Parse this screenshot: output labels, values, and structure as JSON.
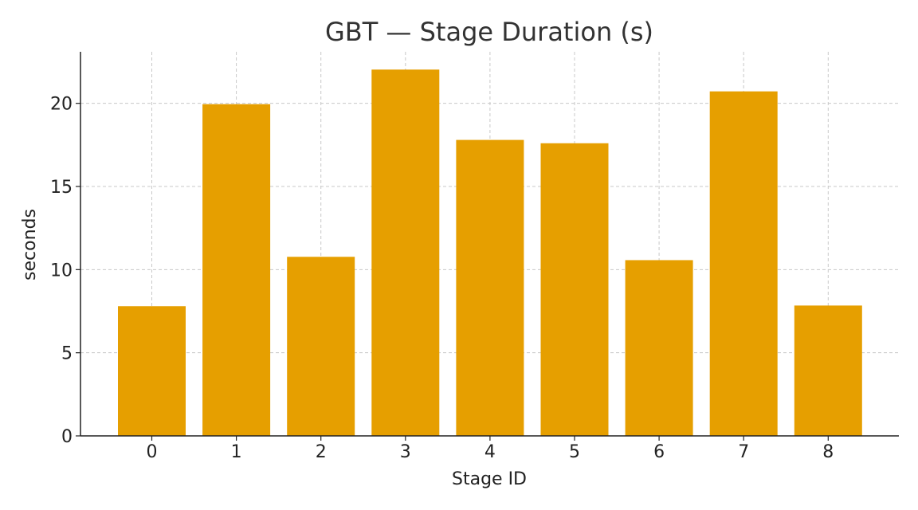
{
  "chart_data": {
    "type": "bar",
    "title": "GBT — Stage Duration (s)",
    "xlabel": "Stage ID",
    "ylabel": "seconds",
    "categories": [
      "0",
      "1",
      "2",
      "3",
      "4",
      "5",
      "6",
      "7",
      "8"
    ],
    "values": [
      7.8,
      19.95,
      10.77,
      22.03,
      17.8,
      17.6,
      10.57,
      20.72,
      7.84
    ],
    "ylim": [
      0,
      23.1
    ],
    "yticks": [
      0,
      5,
      10,
      15,
      20
    ],
    "grid": true,
    "bar_color": "#E69F00"
  }
}
